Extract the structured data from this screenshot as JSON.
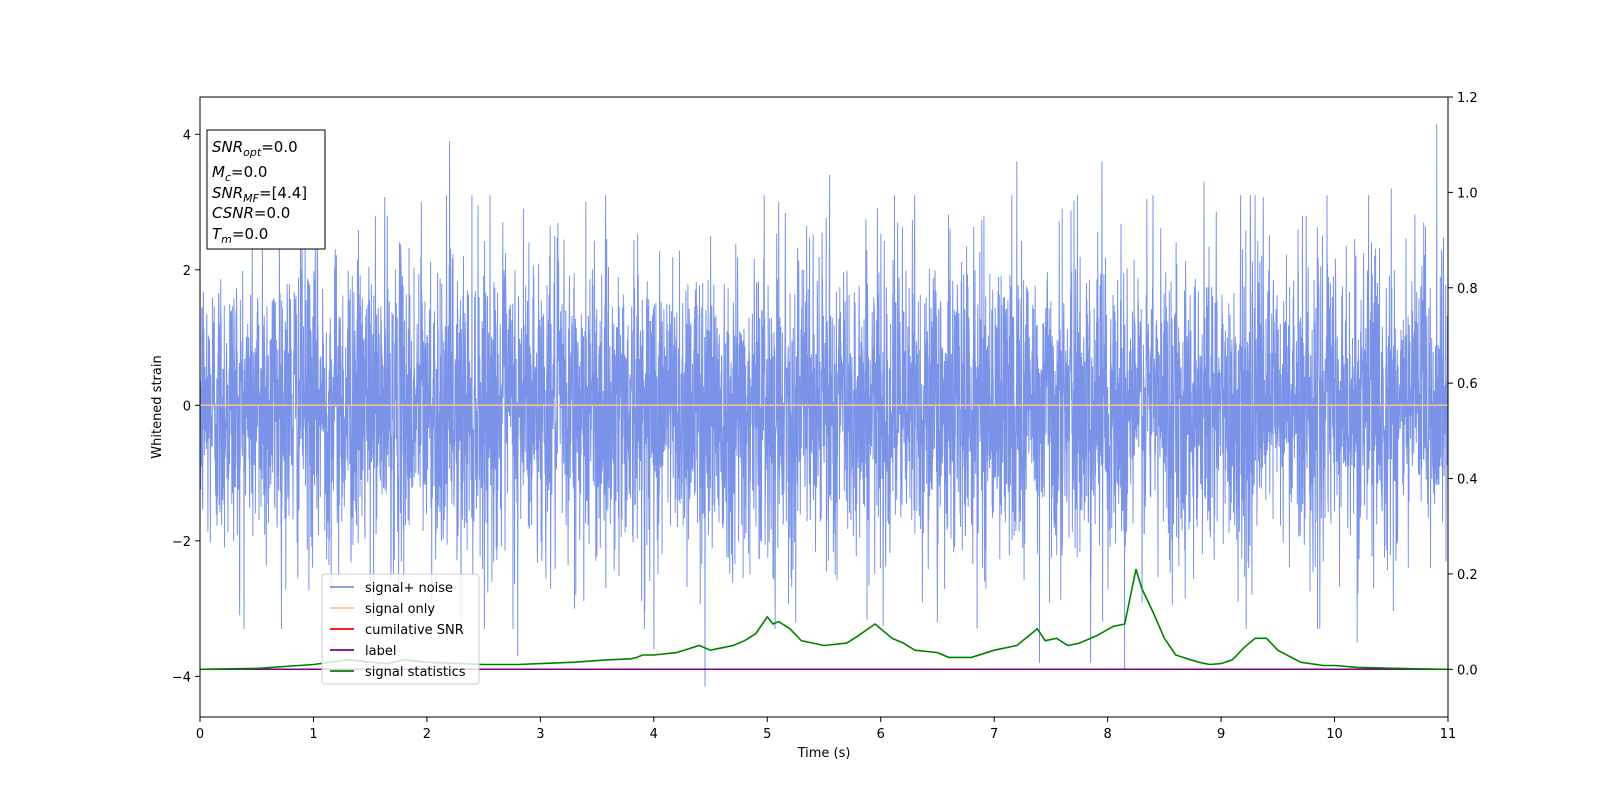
{
  "chart_data": {
    "type": "line",
    "xlabel": "Time (s)",
    "ylabel": "Whitened strain",
    "xlim": [
      0,
      11
    ],
    "ylim": [
      -4.6,
      4.55
    ],
    "y2lim": [
      -0.1,
      1.2
    ],
    "xticks": [
      "0",
      "1",
      "2",
      "3",
      "4",
      "5",
      "6",
      "7",
      "8",
      "9",
      "10",
      "11"
    ],
    "yticks": [
      "4",
      "2",
      "0",
      "−2",
      "−4"
    ],
    "y2ticks": [
      "1.2",
      "1.0",
      "0.8",
      "0.6",
      "0.4",
      "0.2",
      "0.0"
    ],
    "legend_placement": "lower-left",
    "grid": false,
    "annotation": {
      "snr_opt": {
        "base": "SNR",
        "sub": "opt",
        "value": "=0.0"
      },
      "mc": {
        "base": "M",
        "sub": "c",
        "value": "=0.0"
      },
      "snr_mf": {
        "base": "SNR",
        "sub": "MF",
        "value": "=[4.4]"
      },
      "csnr": {
        "base": "CSNR",
        "value": "=0.0"
      },
      "tm": {
        "base": "T",
        "sub": "m",
        "value": "=0.0"
      }
    },
    "series": [
      {
        "name": "signal+ noise",
        "color": "#7a93e8",
        "axis": "left",
        "kind": "noise",
        "noise_sigma": 1.1,
        "spikes": [
          [
            0.55,
            2.7
          ],
          [
            0.7,
            2.9
          ],
          [
            0.9,
            3.0
          ],
          [
            1.65,
            2.8
          ],
          [
            1.95,
            3.0
          ],
          [
            2.2,
            3.9
          ],
          [
            2.45,
            2.95
          ],
          [
            2.85,
            2.9
          ],
          [
            3.4,
            3.0
          ],
          [
            4.5,
            2.5
          ],
          [
            5.1,
            3.0
          ],
          [
            5.55,
            3.4
          ],
          [
            6.15,
            2.7
          ],
          [
            6.3,
            3.1
          ],
          [
            7.2,
            3.6
          ],
          [
            7.6,
            2.9
          ],
          [
            7.95,
            3.6
          ],
          [
            8.4,
            3.1
          ],
          [
            8.85,
            3.3
          ],
          [
            9.3,
            3.1
          ],
          [
            9.75,
            2.8
          ],
          [
            10.3,
            3.1
          ],
          [
            10.5,
            3.2
          ],
          [
            10.9,
            4.15
          ],
          [
            0.35,
            -3.1
          ],
          [
            0.9,
            -3.3
          ],
          [
            1.5,
            -2.8
          ],
          [
            2.3,
            -3.2
          ],
          [
            2.8,
            -3.7
          ],
          [
            3.3,
            -3.0
          ],
          [
            4.0,
            -3.6
          ],
          [
            4.45,
            -4.15
          ],
          [
            5.25,
            -3.2
          ],
          [
            5.6,
            -2.5
          ],
          [
            6.5,
            -3.2
          ],
          [
            7.4,
            -3.8
          ],
          [
            7.85,
            -3.8
          ],
          [
            8.15,
            -3.9
          ],
          [
            9.15,
            -2.9
          ],
          [
            9.75,
            -3.0
          ],
          [
            10.2,
            -3.5
          ],
          [
            10.65,
            -2.4
          ]
        ]
      },
      {
        "name": "signal only",
        "color": "#f5c48a",
        "axis": "left",
        "x": [
          0,
          11
        ],
        "y": [
          0,
          0
        ]
      },
      {
        "name": "cumilative SNR",
        "color": "#ff0000",
        "axis": "right",
        "x": [
          0,
          11
        ],
        "y": [
          0,
          0
        ]
      },
      {
        "name": "label",
        "color": "#800080",
        "axis": "right",
        "x": [
          0,
          11
        ],
        "y": [
          0,
          0
        ]
      },
      {
        "name": "signal statistics",
        "color": "#008000",
        "axis": "right",
        "x": [
          0,
          0.5,
          1.0,
          1.3,
          1.5,
          1.65,
          1.8,
          2.0,
          2.3,
          2.5,
          2.8,
          3.0,
          3.3,
          3.6,
          3.8,
          3.85,
          3.9,
          4.0,
          4.2,
          4.4,
          4.5,
          4.6,
          4.7,
          4.8,
          4.9,
          5.0,
          5.05,
          5.1,
          5.2,
          5.3,
          5.5,
          5.7,
          5.8,
          5.95,
          6.0,
          6.1,
          6.2,
          6.3,
          6.5,
          6.6,
          6.8,
          7.0,
          7.2,
          7.38,
          7.45,
          7.55,
          7.65,
          7.75,
          7.9,
          8.05,
          8.15,
          8.25,
          8.3,
          8.4,
          8.5,
          8.6,
          8.8,
          8.9,
          9.0,
          9.1,
          9.2,
          9.3,
          9.4,
          9.5,
          9.7,
          9.9,
          10.0,
          10.2,
          10.4,
          10.7,
          11.0
        ],
        "y": [
          0.0,
          0.002,
          0.01,
          0.02,
          0.015,
          0.012,
          0.02,
          0.015,
          0.012,
          0.01,
          0.01,
          0.012,
          0.015,
          0.02,
          0.022,
          0.025,
          0.03,
          0.03,
          0.035,
          0.05,
          0.04,
          0.045,
          0.05,
          0.06,
          0.075,
          0.11,
          0.095,
          0.1,
          0.085,
          0.06,
          0.05,
          0.055,
          0.07,
          0.095,
          0.085,
          0.065,
          0.055,
          0.04,
          0.035,
          0.025,
          0.025,
          0.04,
          0.05,
          0.085,
          0.06,
          0.065,
          0.05,
          0.055,
          0.07,
          0.09,
          0.095,
          0.21,
          0.17,
          0.12,
          0.065,
          0.03,
          0.015,
          0.01,
          0.012,
          0.02,
          0.045,
          0.065,
          0.065,
          0.04,
          0.015,
          0.008,
          0.008,
          0.004,
          0.003,
          0.001,
          0.0
        ]
      }
    ]
  }
}
